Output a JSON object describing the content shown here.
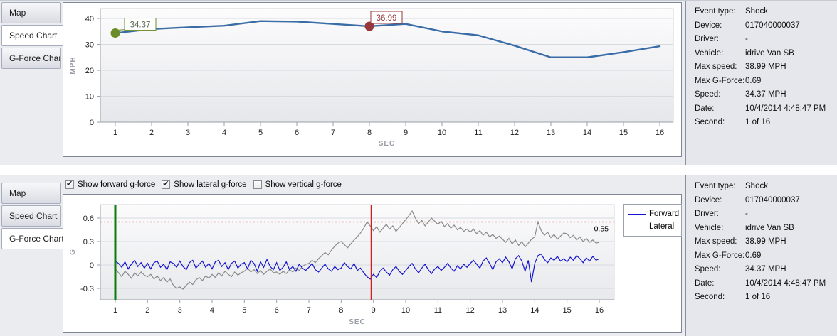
{
  "panels": {
    "top": {
      "tabs": [
        {
          "label": "Map",
          "selected": false
        },
        {
          "label": "Speed Chart",
          "selected": true
        },
        {
          "label": "G-Force Chart",
          "selected": false
        }
      ]
    },
    "bottom": {
      "tabs": [
        {
          "label": "Map",
          "selected": false
        },
        {
          "label": "Speed Chart",
          "selected": false
        },
        {
          "label": "G-Force Chart",
          "selected": true
        }
      ],
      "checkboxes": [
        {
          "label": "Show forward g-force",
          "checked": true
        },
        {
          "label": "Show lateral g-force",
          "checked": true
        },
        {
          "label": "Show vertical g-force",
          "checked": false
        }
      ]
    }
  },
  "info": {
    "rows": [
      {
        "label": "Event type:",
        "value": "Shock"
      },
      {
        "label": "Device:",
        "value": "017040000037"
      },
      {
        "label": "Driver:",
        "value": "-"
      },
      {
        "label": "Vehicle:",
        "value": "idrive Van SB"
      },
      {
        "label": "Max speed:",
        "value": "38.99 MPH"
      },
      {
        "label": "Max G-Force:",
        "value": "0.69"
      },
      {
        "label": "Speed:",
        "value": "34.37 MPH"
      },
      {
        "label": "Date:",
        "value": "10/4/2014 4:48:47 PM"
      },
      {
        "label": "Second:",
        "value": "1 of 16"
      }
    ]
  },
  "chart_data": [
    {
      "type": "line",
      "title": "Speed Chart",
      "xlabel": "SEC",
      "ylabel": "MPH",
      "x": [
        1,
        2,
        3,
        4,
        5,
        6,
        7,
        8,
        9,
        10,
        11,
        12,
        13,
        14,
        15,
        16
      ],
      "values": [
        34.37,
        35.9,
        36.6,
        37.2,
        38.99,
        38.8,
        37.9,
        36.99,
        37.9,
        35.0,
        33.5,
        29.5,
        25.0,
        25.0,
        27.0,
        29.3
      ],
      "ylim": [
        0,
        43
      ],
      "yticks": [
        0,
        10,
        20,
        30,
        40
      ],
      "xticks": [
        1,
        2,
        3,
        4,
        5,
        6,
        7,
        8,
        9,
        10,
        11,
        12,
        13,
        14,
        15,
        16
      ],
      "grid": true,
      "legend_position": "none",
      "line_color": "#3a6da8",
      "annotations": [
        {
          "x": 1,
          "y": 34.37,
          "label": "34.37",
          "color": "#6b8c2b",
          "text_color": "#5a6a50"
        },
        {
          "x": 8,
          "y": 36.99,
          "label": "36.99",
          "color": "#96383a",
          "text_color": "#96383a"
        }
      ]
    },
    {
      "type": "line",
      "title": "G-Force Chart",
      "xlabel": "SEC",
      "ylabel": "G",
      "ylim": [
        -0.45,
        0.78
      ],
      "yticks": [
        -0.3,
        0,
        0.3,
        0.6
      ],
      "xticks": [
        1,
        2,
        3,
        4,
        5,
        6,
        7,
        8,
        9,
        10,
        11,
        12,
        13,
        14,
        15,
        16
      ],
      "grid": true,
      "legend_position": "right",
      "x_start": 1,
      "x_step": 0.1,
      "series": [
        {
          "name": "Forward",
          "color": "#1414cf",
          "values": [
            0.05,
            0.02,
            -0.03,
            0.04,
            -0.05,
            0.01,
            0.06,
            -0.02,
            0.03,
            -0.04,
            0.02,
            -0.05,
            0.03,
            0.05,
            -0.03,
            0.01,
            -0.06,
            0.04,
            0.02,
            -0.03,
            0.05,
            -0.02,
            -0.06,
            0.03,
            0.06,
            -0.04,
            0.01,
            0.05,
            -0.03,
            0.02,
            -0.05,
            0.04,
            0.06,
            -0.02,
            0.03,
            -0.06,
            0.02,
            0.05,
            -0.04,
            0.01,
            0.03,
            -0.05,
            0.06,
            0.02,
            -0.08,
            0.04,
            -0.03,
            0.07,
            -0.02,
            -0.06,
            0.03,
            -0.07,
            -0.03,
            0.04,
            -0.06,
            -0.02,
            -0.08,
            0.01,
            -0.04,
            -0.07,
            -0.03,
            0.02,
            -0.06,
            -0.09,
            -0.04,
            0.01,
            -0.05,
            -0.08,
            -0.02,
            -0.06,
            -0.04,
            0.03,
            -0.02,
            -0.05,
            0.02,
            -0.07,
            -0.04,
            -0.1,
            -0.15,
            -0.18,
            -0.12,
            -0.16,
            -0.08,
            -0.04,
            -0.09,
            -0.13,
            -0.06,
            -0.02,
            -0.08,
            -0.12,
            -0.07,
            -0.02,
            0.02,
            -0.05,
            -0.1,
            -0.04,
            0.01,
            -0.06,
            -0.11,
            -0.05,
            -0.02,
            -0.07,
            -0.03,
            0.02,
            -0.04,
            -0.08,
            -0.01,
            -0.05,
            0.01,
            -0.03,
            0.02,
            0.06,
            0.01,
            -0.04,
            0.05,
            0.09,
            0.02,
            -0.06,
            0.04,
            0.08,
            0.03,
            0.1,
            0.04,
            -0.05,
            0.08,
            0.12,
            0.05,
            -0.08,
            0.06,
            -0.22,
            0.02,
            0.12,
            0.14,
            0.07,
            0.03,
            0.09,
            0.06,
            0.11,
            0.05,
            0.08,
            0.04,
            0.1,
            0.06,
            0.12,
            0.08,
            0.03,
            0.09,
            0.05,
            0.11,
            0.06,
            0.08
          ]
        },
        {
          "name": "Lateral",
          "color": "#8a8a8a",
          "values": [
            -0.05,
            -0.1,
            -0.15,
            -0.08,
            -0.12,
            -0.17,
            -0.1,
            -0.14,
            -0.09,
            -0.13,
            -0.15,
            -0.12,
            -0.18,
            -0.14,
            -0.2,
            -0.16,
            -0.22,
            -0.18,
            -0.26,
            -0.3,
            -0.28,
            -0.31,
            -0.26,
            -0.22,
            -0.25,
            -0.19,
            -0.16,
            -0.2,
            -0.14,
            -0.17,
            -0.12,
            -0.16,
            -0.1,
            -0.14,
            -0.08,
            -0.12,
            -0.15,
            -0.09,
            -0.13,
            -0.1,
            -0.08,
            -0.04,
            -0.09,
            -0.06,
            -0.11,
            -0.07,
            -0.12,
            -0.08,
            -0.05,
            -0.1,
            -0.09,
            -0.12,
            -0.08,
            -0.11,
            -0.06,
            -0.09,
            -0.04,
            -0.07,
            -0.02,
            0.01,
            0.02,
            0.06,
            0.03,
            0.08,
            0.12,
            0.16,
            0.13,
            0.19,
            0.24,
            0.28,
            0.3,
            0.26,
            0.22,
            0.27,
            0.32,
            0.36,
            0.41,
            0.47,
            0.55,
            0.5,
            0.44,
            0.49,
            0.42,
            0.47,
            0.52,
            0.46,
            0.5,
            0.43,
            0.48,
            0.53,
            0.58,
            0.63,
            0.69,
            0.6,
            0.53,
            0.57,
            0.5,
            0.55,
            0.6,
            0.56,
            0.52,
            0.56,
            0.49,
            0.53,
            0.47,
            0.51,
            0.45,
            0.48,
            0.43,
            0.46,
            0.42,
            0.46,
            0.4,
            0.44,
            0.38,
            0.42,
            0.36,
            0.39,
            0.34,
            0.37,
            0.33,
            0.29,
            0.34,
            0.27,
            0.32,
            0.25,
            0.3,
            0.23,
            0.28,
            0.33,
            0.36,
            0.55,
            0.44,
            0.38,
            0.42,
            0.35,
            0.39,
            0.33,
            0.37,
            0.41,
            0.4,
            0.35,
            0.38,
            0.32,
            0.36,
            0.3,
            0.34,
            0.29,
            0.32,
            0.28,
            0.29
          ]
        }
      ],
      "markers": {
        "vlines": [
          {
            "x": 1,
            "color": "#0a7d0c",
            "width": 3
          },
          {
            "x": 8.93,
            "color": "#cc2020",
            "width": 1.5
          }
        ],
        "hline": {
          "y": 0.55,
          "label": "0.55",
          "color": "#e02020",
          "style": "dotted"
        }
      }
    }
  ]
}
